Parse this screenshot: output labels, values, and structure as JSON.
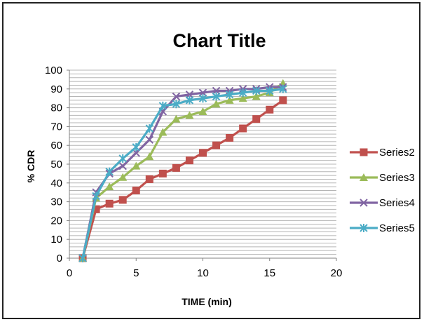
{
  "chart_data": {
    "type": "line",
    "title": "Chart Title",
    "xlabel": "TIME (min)",
    "ylabel": "% CDR",
    "xlim": [
      0,
      20
    ],
    "ylim": [
      0,
      100
    ],
    "x_ticks": [
      0,
      5,
      10,
      15,
      20
    ],
    "y_ticks": [
      0,
      10,
      20,
      30,
      40,
      50,
      60,
      70,
      80,
      90,
      100
    ],
    "grid": "horizontal",
    "legend_position": "right",
    "x": [
      1,
      2,
      3,
      4,
      5,
      6,
      7,
      8,
      9,
      10,
      11,
      12,
      13,
      14,
      15,
      16
    ],
    "series": [
      {
        "name": "Series2",
        "color": "#c0504d",
        "marker": "square",
        "values": [
          0,
          26,
          29,
          31,
          36,
          42,
          45,
          48,
          52,
          56,
          60,
          64,
          69,
          74,
          79,
          84
        ]
      },
      {
        "name": "Series3",
        "color": "#9bbb59",
        "marker": "triangle",
        "values": [
          0,
          32,
          38,
          43,
          49,
          54,
          67,
          74,
          76,
          78,
          82,
          84,
          85,
          86,
          88,
          93
        ]
      },
      {
        "name": "Series4",
        "color": "#8064a2",
        "marker": "x",
        "values": [
          0,
          35,
          45,
          49,
          56,
          63,
          78,
          86,
          87,
          88,
          89,
          89,
          90,
          90,
          91,
          91
        ]
      },
      {
        "name": "Series5",
        "color": "#4bacc6",
        "marker": "star",
        "values": [
          0,
          33,
          46,
          53,
          59,
          69,
          81,
          82,
          84,
          85,
          86,
          87,
          88,
          89,
          89,
          90
        ]
      }
    ]
  }
}
